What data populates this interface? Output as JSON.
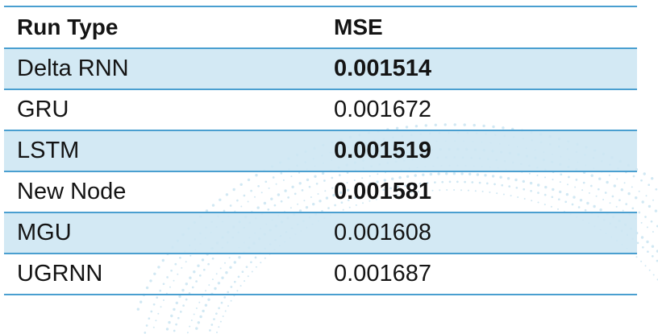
{
  "table": {
    "headers": [
      "Run Type",
      "MSE"
    ],
    "rows": [
      {
        "run_type": "Delta RNN",
        "mse": "0.001514",
        "mse_bold": true
      },
      {
        "run_type": "GRU",
        "mse": "0.001672",
        "mse_bold": false
      },
      {
        "run_type": "LSTM",
        "mse": "0.001519",
        "mse_bold": true
      },
      {
        "run_type": "New Node",
        "mse": "0.001581",
        "mse_bold": true
      },
      {
        "run_type": "MGU",
        "mse": "0.001608",
        "mse_bold": false
      },
      {
        "run_type": "UGRNN",
        "mse": "0.001687",
        "mse_bold": false
      }
    ]
  },
  "colors": {
    "row_shade": "#cde6f3",
    "rule": "#4a9fd0",
    "text": "#141414"
  }
}
